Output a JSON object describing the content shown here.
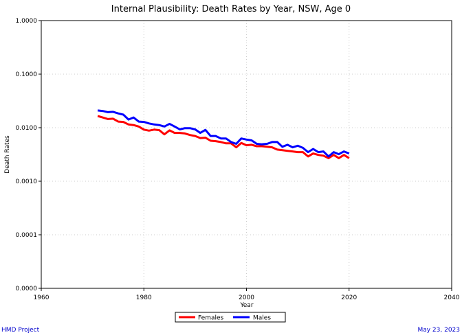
{
  "chart_data": {
    "type": "line",
    "title": "Internal Plausibility: Death Rates by Year, NSW, Age 0",
    "xlabel": "Year",
    "ylabel": "Death Rates",
    "xlim": [
      1960,
      2040
    ],
    "ylim": [
      1e-05,
      1
    ],
    "y_scale": "log",
    "x_ticks": [
      1960,
      1980,
      2000,
      2020,
      2040
    ],
    "y_ticks": [
      {
        "value": 1,
        "label": "1.0000"
      },
      {
        "value": 0.1,
        "label": "0.1000"
      },
      {
        "value": 0.01,
        "label": "0.0100"
      },
      {
        "value": 0.001,
        "label": "0.0010"
      },
      {
        "value": 0.0001,
        "label": "0.0001"
      },
      {
        "value": 1e-05,
        "label": "0.0000"
      }
    ],
    "grid": true,
    "legend_position": "bottom-center",
    "series": [
      {
        "name": "Females",
        "color": "#ff0000",
        "x": [
          1971,
          1972,
          1973,
          1974,
          1975,
          1976,
          1977,
          1978,
          1979,
          1980,
          1981,
          1982,
          1983,
          1984,
          1985,
          1986,
          1987,
          1988,
          1989,
          1990,
          1991,
          1992,
          1993,
          1994,
          1995,
          1996,
          1997,
          1998,
          1999,
          2000,
          2001,
          2002,
          2003,
          2004,
          2005,
          2006,
          2007,
          2008,
          2009,
          2010,
          2011,
          2012,
          2013,
          2014,
          2015,
          2016,
          2017,
          2018,
          2019,
          2020
        ],
        "values": [
          0.0165,
          0.0155,
          0.0145,
          0.0147,
          0.013,
          0.0128,
          0.0115,
          0.0112,
          0.0105,
          0.0092,
          0.0088,
          0.0092,
          0.009,
          0.0075,
          0.0089,
          0.008,
          0.008,
          0.0078,
          0.0073,
          0.007,
          0.0064,
          0.0065,
          0.0057,
          0.0056,
          0.0054,
          0.0051,
          0.0051,
          0.0043,
          0.0052,
          0.0047,
          0.0048,
          0.0045,
          0.0045,
          0.0044,
          0.0043,
          0.0039,
          0.0038,
          0.0037,
          0.0036,
          0.0035,
          0.0035,
          0.0029,
          0.0033,
          0.0031,
          0.003,
          0.0027,
          0.0031,
          0.0027,
          0.0031,
          0.0027
        ]
      },
      {
        "name": "Males",
        "color": "#0000ff",
        "x": [
          1971,
          1972,
          1973,
          1974,
          1975,
          1976,
          1977,
          1978,
          1979,
          1980,
          1981,
          1982,
          1983,
          1984,
          1985,
          1986,
          1987,
          1988,
          1989,
          1990,
          1991,
          1992,
          1993,
          1994,
          1995,
          1996,
          1997,
          1998,
          1999,
          2000,
          2001,
          2002,
          2003,
          2004,
          2005,
          2006,
          2007,
          2008,
          2009,
          2010,
          2011,
          2012,
          2013,
          2014,
          2015,
          2016,
          2017,
          2018,
          2019,
          2020
        ],
        "values": [
          0.021,
          0.0205,
          0.0195,
          0.0198,
          0.0185,
          0.0175,
          0.0142,
          0.0155,
          0.013,
          0.0128,
          0.012,
          0.0115,
          0.0112,
          0.0105,
          0.0118,
          0.0105,
          0.0093,
          0.0098,
          0.0098,
          0.0093,
          0.008,
          0.0091,
          0.007,
          0.007,
          0.0063,
          0.0063,
          0.0054,
          0.005,
          0.0063,
          0.006,
          0.0058,
          0.005,
          0.0049,
          0.005,
          0.0054,
          0.0054,
          0.0044,
          0.0048,
          0.0043,
          0.0046,
          0.0042,
          0.0035,
          0.004,
          0.0035,
          0.0036,
          0.0029,
          0.0035,
          0.0032,
          0.0036,
          0.0033
        ]
      }
    ]
  },
  "footer": {
    "left": "HMD Project",
    "right": "May 23, 2023"
  }
}
